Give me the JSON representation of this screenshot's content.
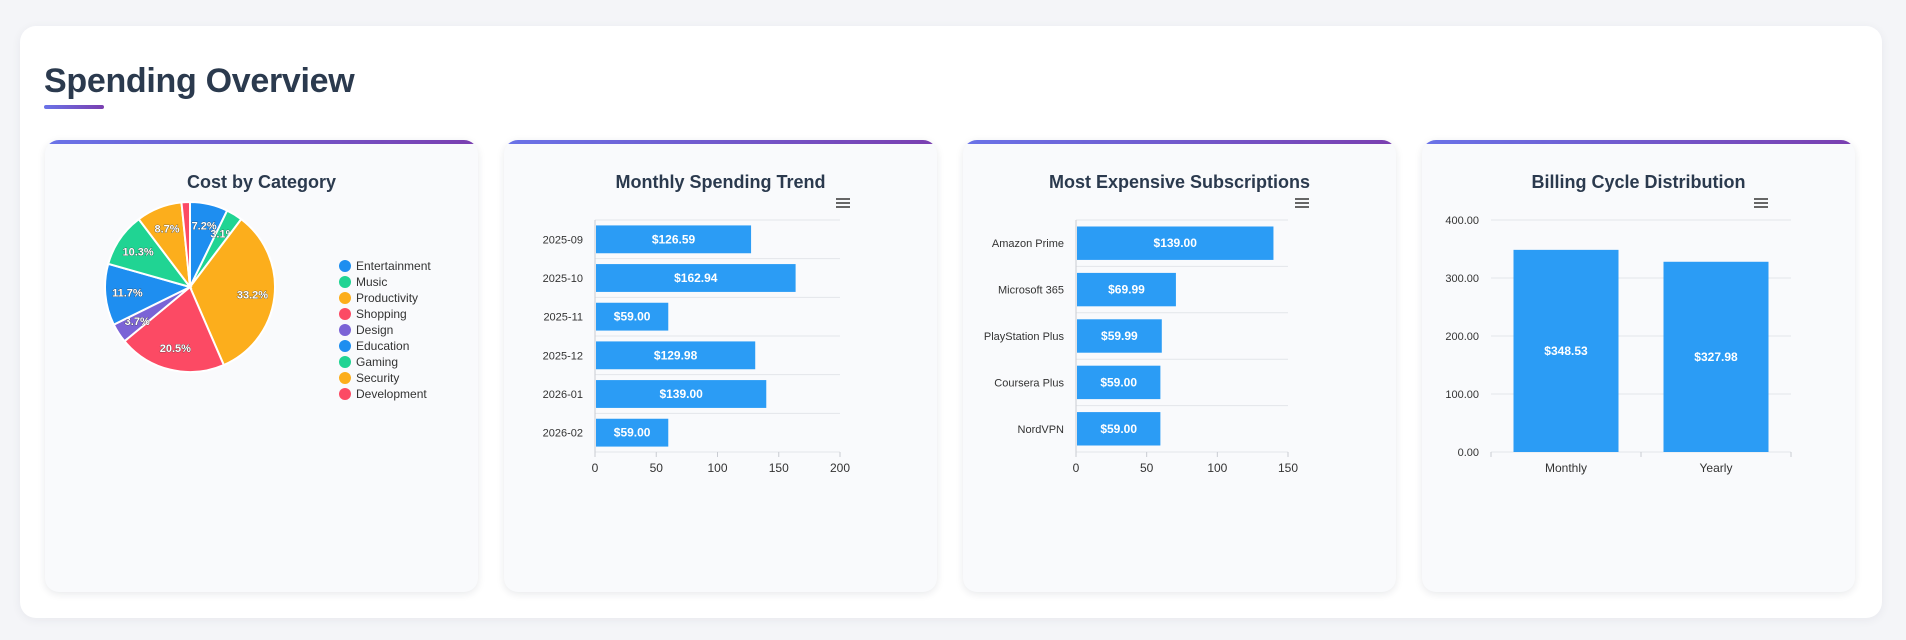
{
  "page": {
    "title": "Spending Overview"
  },
  "colors": {
    "accent_start": "#6a73e8",
    "accent_end": "#7a3fb0",
    "bar": "#2b9cf5"
  },
  "charts": {
    "category": {
      "title": "Cost by Category"
    },
    "trend": {
      "title": "Monthly Spending Trend",
      "menu_icon": "menu-icon"
    },
    "expensive": {
      "title": "Most Expensive Subscriptions",
      "menu_icon": "menu-icon"
    },
    "billing": {
      "title": "Billing Cycle Distribution",
      "menu_icon": "menu-icon"
    }
  },
  "chart_data": [
    {
      "id": "category",
      "type": "pie",
      "title": "Cost by Category",
      "slices": [
        {
          "name": "Entertainment",
          "value": 7.2,
          "label": "7.2%",
          "color": "#1e8ef0"
        },
        {
          "name": "Music",
          "value": 3.1,
          "label": "3.1%",
          "color": "#20d493"
        },
        {
          "name": "Productivity",
          "value": 33.2,
          "label": "33.2%",
          "color": "#fcae1c"
        },
        {
          "name": "Shopping",
          "value": 20.5,
          "label": "20.5%",
          "color": "#fc4a64"
        },
        {
          "name": "Design",
          "value": 3.7,
          "label": "3.7%",
          "color": "#7b63d6"
        },
        {
          "name": "Education",
          "value": 11.7,
          "label": "11.7%",
          "color": "#1e8ef0"
        },
        {
          "name": "Gaming",
          "value": 10.3,
          "label": "10.3%",
          "color": "#20d493"
        },
        {
          "name": "Security",
          "value": 8.7,
          "label": "8.7%",
          "color": "#fcae1c"
        },
        {
          "name": "Development",
          "value": 1.6,
          "label": "",
          "color": "#fc4a64"
        }
      ],
      "legend": [
        "Entertainment",
        "Music",
        "Productivity",
        "Shopping",
        "Design",
        "Education",
        "Gaming",
        "Security",
        "Development"
      ]
    },
    {
      "id": "trend",
      "type": "bar",
      "orientation": "horizontal",
      "title": "Monthly Spending Trend",
      "categories": [
        "2025-09",
        "2025-10",
        "2025-11",
        "2025-12",
        "2026-01",
        "2026-02"
      ],
      "values": [
        126.59,
        162.94,
        59.0,
        129.98,
        139.0,
        59.0
      ],
      "labels": [
        "$126.59",
        "$162.94",
        "$59.00",
        "$129.98",
        "$139.00",
        "$59.00"
      ],
      "xlim": [
        0,
        200
      ],
      "ticks": [
        "0",
        "50",
        "100",
        "150",
        "200"
      ]
    },
    {
      "id": "expensive",
      "type": "bar",
      "orientation": "horizontal",
      "title": "Most Expensive Subscriptions",
      "categories": [
        "Amazon Prime",
        "Microsoft 365",
        "PlayStation Plus",
        "Coursera Plus",
        "NordVPN"
      ],
      "values": [
        139.0,
        69.99,
        59.99,
        59.0,
        59.0
      ],
      "labels": [
        "$139.00",
        "$69.99",
        "$59.99",
        "$59.00",
        "$59.00"
      ],
      "xlim": [
        0,
        150
      ],
      "ticks": [
        "0",
        "50",
        "100",
        "150"
      ]
    },
    {
      "id": "billing",
      "type": "bar",
      "orientation": "vertical",
      "title": "Billing Cycle Distribution",
      "categories": [
        "Monthly",
        "Yearly"
      ],
      "values": [
        348.53,
        327.98
      ],
      "labels": [
        "$348.53",
        "$327.98"
      ],
      "ylim": [
        0,
        400
      ],
      "ticks": [
        "0.00",
        "100.00",
        "200.00",
        "300.00",
        "400.00"
      ]
    }
  ]
}
